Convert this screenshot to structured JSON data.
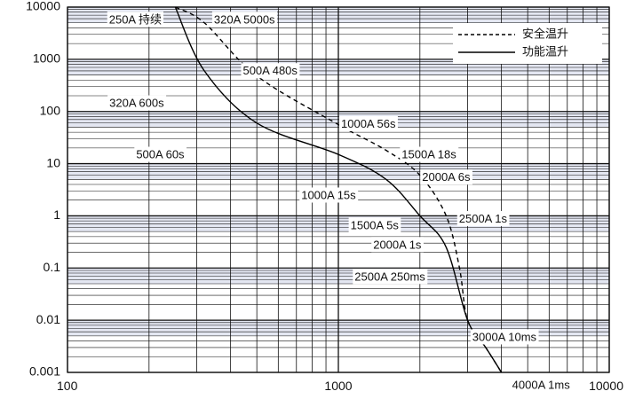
{
  "chart_data": {
    "type": "line",
    "title": "",
    "xlabel": "",
    "ylabel": "",
    "x_scale": "log",
    "y_scale": "log",
    "xlim": [
      100,
      10000
    ],
    "ylim": [
      0.001,
      10000
    ],
    "x_ticks": [
      "100",
      "1000",
      "10000"
    ],
    "y_ticks": [
      "10000",
      "1000",
      "100",
      "10",
      "1",
      "0.1",
      "0.01",
      "0.001"
    ],
    "grid": true,
    "legend_position": "top-right",
    "series": [
      {
        "name": "安全温升",
        "style": "dashed",
        "x": [
          250,
          320,
          500,
          1000,
          1500,
          2000,
          2500,
          2800,
          3000,
          3500,
          4000
        ],
        "y": [
          10000,
          5000,
          480,
          56,
          18,
          6,
          1,
          0.1,
          0.01,
          0.003,
          0.001
        ]
      },
      {
        "name": "功能温升",
        "style": "solid",
        "x": [
          250,
          320,
          500,
          1000,
          1500,
          2000,
          2500,
          3000,
          3500,
          4000
        ],
        "y": [
          10000,
          600,
          60,
          15,
          5,
          1,
          0.25,
          0.01,
          0.003,
          0.001
        ]
      }
    ],
    "annotations": [
      {
        "text": "250A 持续",
        "x": 178,
        "y": 5600
      },
      {
        "text": "320A 5000s",
        "x": 450,
        "y": 5600
      },
      {
        "text": "500A 480s",
        "x": 560,
        "y": 580
      },
      {
        "text": "320A 600s",
        "x": 180,
        "y": 140
      },
      {
        "text": "1000A 56s",
        "x": 1290,
        "y": 56
      },
      {
        "text": "500A 60s",
        "x": 220,
        "y": 14.5
      },
      {
        "text": "1500A 18s",
        "x": 2160,
        "y": 14.5
      },
      {
        "text": "1000A 15s",
        "x": 920,
        "y": 2.4
      },
      {
        "text": "2000A 6s",
        "x": 2500,
        "y": 5.3
      },
      {
        "text": "1500A 5s",
        "x": 1360,
        "y": 0.64
      },
      {
        "text": "2500A 1s",
        "x": 3420,
        "y": 0.85
      },
      {
        "text": "2000A 1s",
        "x": 1650,
        "y": 0.27
      },
      {
        "text": "2500A 250ms",
        "x": 1550,
        "y": 0.066
      },
      {
        "text": "3000A 10ms",
        "x": 4100,
        "y": 0.0046
      },
      {
        "text": "4000A 1ms",
        "x": 5600,
        "y": 0.00055
      }
    ]
  },
  "colors": {
    "background": "#ffffff",
    "band_fill": "#e4e7f2",
    "grid": "#111111",
    "curve": "#000000"
  }
}
